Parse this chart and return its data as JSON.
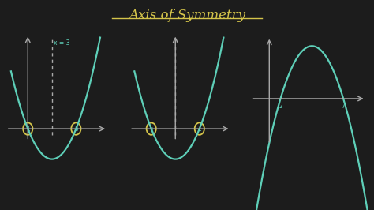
{
  "bg_color": "#1c1c1c",
  "title": "Axis of Symmetry",
  "title_color": "#d4c44a",
  "title_fontsize": 12,
  "curve_color": "#5ecfb8",
  "axis_color": "#aaaaaa",
  "circle_color": "#d4c44a",
  "text_color": "#5ecfb8",
  "dashed_color": "#aaaaaa",
  "box_color": "#cccccc"
}
